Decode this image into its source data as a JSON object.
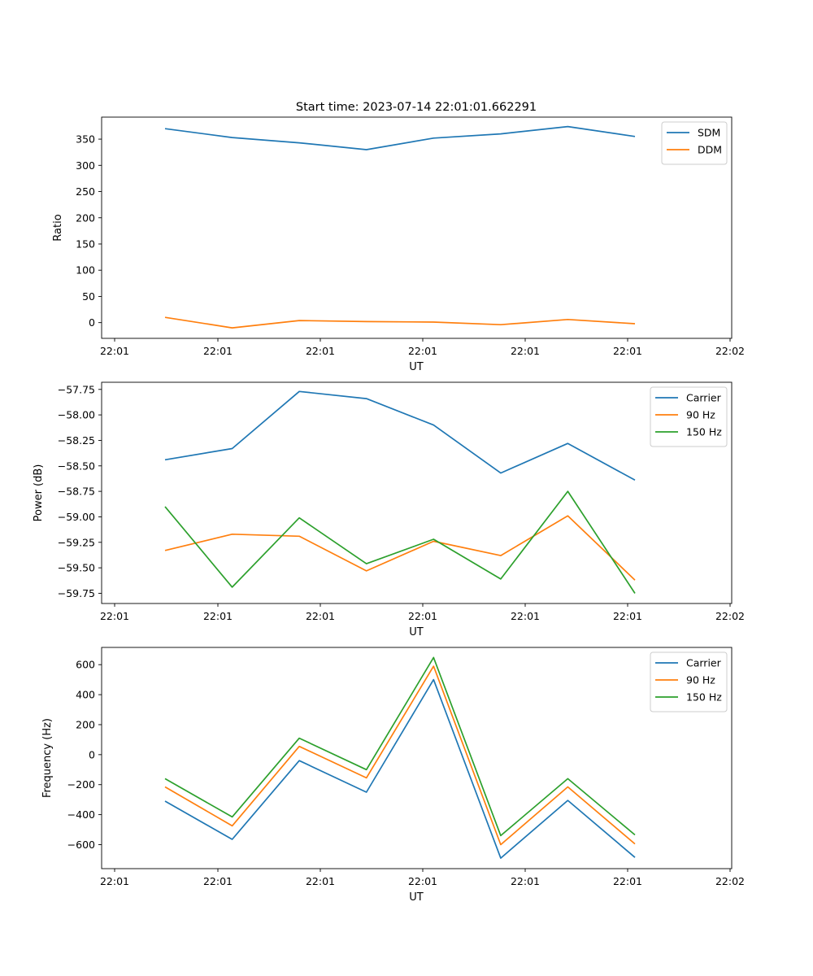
{
  "figure_title": "Start time: 2023-07-14 22:01:01.662291",
  "colors": {
    "blue": "#1f77b4",
    "orange": "#ff7f0e",
    "green": "#2ca02c"
  },
  "chart_data": [
    {
      "type": "line",
      "xlabel": "UT",
      "ylabel": "Ratio",
      "x_tick_labels": [
        "22:01",
        "22:01",
        "22:01",
        "22:01",
        "22:01",
        "22:01",
        "22:01"
      ],
      "x_end_tick_label": "22:02",
      "y_ticks": [
        0,
        50,
        100,
        150,
        200,
        250,
        300,
        350
      ],
      "y_tick_labels": [
        "0",
        "50",
        "100",
        "150",
        "200",
        "250",
        "300",
        "350"
      ],
      "ylim": [
        -30,
        392
      ],
      "x": [
        1,
        2,
        3,
        4,
        5,
        6,
        7,
        8
      ],
      "series": [
        {
          "name": "SDM",
          "color": "#1f77b4",
          "values": [
            370,
            353,
            343,
            330,
            352,
            360,
            374,
            355
          ]
        },
        {
          "name": "DDM",
          "color": "#ff7f0e",
          "values": [
            10,
            -10,
            4,
            2,
            1,
            -4,
            6,
            -2
          ]
        }
      ],
      "legend": "top-right"
    },
    {
      "type": "line",
      "xlabel": "UT",
      "ylabel": "Power (dB)",
      "x_tick_labels": [
        "22:01",
        "22:01",
        "22:01",
        "22:01",
        "22:01",
        "22:01",
        "22:01"
      ],
      "x_end_tick_label": "22:02",
      "y_ticks": [
        -59.75,
        -59.5,
        -59.25,
        -59.0,
        -58.75,
        -58.5,
        -58.25,
        -58.0,
        -57.75
      ],
      "y_tick_labels": [
        "−59.75",
        "−59.50",
        "−59.25",
        "−59.00",
        "−58.75",
        "−58.50",
        "−58.25",
        "−58.00",
        "−57.75"
      ],
      "ylim": [
        -59.85,
        -57.68
      ],
      "x": [
        1,
        2,
        3,
        4,
        5,
        6,
        7,
        8
      ],
      "series": [
        {
          "name": "Carrier",
          "color": "#1f77b4",
          "values": [
            -58.44,
            -58.33,
            -57.77,
            -57.84,
            -58.1,
            -58.57,
            -58.28,
            -58.64
          ]
        },
        {
          "name": "90 Hz",
          "color": "#ff7f0e",
          "values": [
            -59.33,
            -59.17,
            -59.19,
            -59.53,
            -59.24,
            -59.38,
            -58.99,
            -59.62
          ]
        },
        {
          "name": "150 Hz",
          "color": "#2ca02c",
          "values": [
            -58.9,
            -59.69,
            -59.01,
            -59.46,
            -59.22,
            -59.61,
            -58.75,
            -59.75
          ]
        }
      ],
      "legend": "top-right"
    },
    {
      "type": "line",
      "xlabel": "UT",
      "ylabel": "Frequency (Hz)",
      "x_tick_labels": [
        "22:01",
        "22:01",
        "22:01",
        "22:01",
        "22:01",
        "22:01",
        "22:01"
      ],
      "x_end_tick_label": "22:02",
      "y_ticks": [
        -600,
        -400,
        -200,
        0,
        200,
        400,
        600
      ],
      "y_tick_labels": [
        "−600",
        "−400",
        "−200",
        "0",
        "200",
        "400",
        "600"
      ],
      "ylim": [
        -760,
        715
      ],
      "x": [
        1,
        2,
        3,
        4,
        5,
        6,
        7,
        8
      ],
      "series": [
        {
          "name": "Carrier",
          "color": "#1f77b4",
          "values": [
            -310,
            -565,
            -40,
            -250,
            500,
            -690,
            -305,
            -685
          ]
        },
        {
          "name": "90 Hz",
          "color": "#ff7f0e",
          "values": [
            -215,
            -475,
            55,
            -155,
            590,
            -600,
            -215,
            -595
          ]
        },
        {
          "name": "150 Hz",
          "color": "#2ca02c",
          "values": [
            -160,
            -415,
            110,
            -100,
            648,
            -540,
            -160,
            -535
          ]
        }
      ],
      "legend": "top-right"
    }
  ]
}
